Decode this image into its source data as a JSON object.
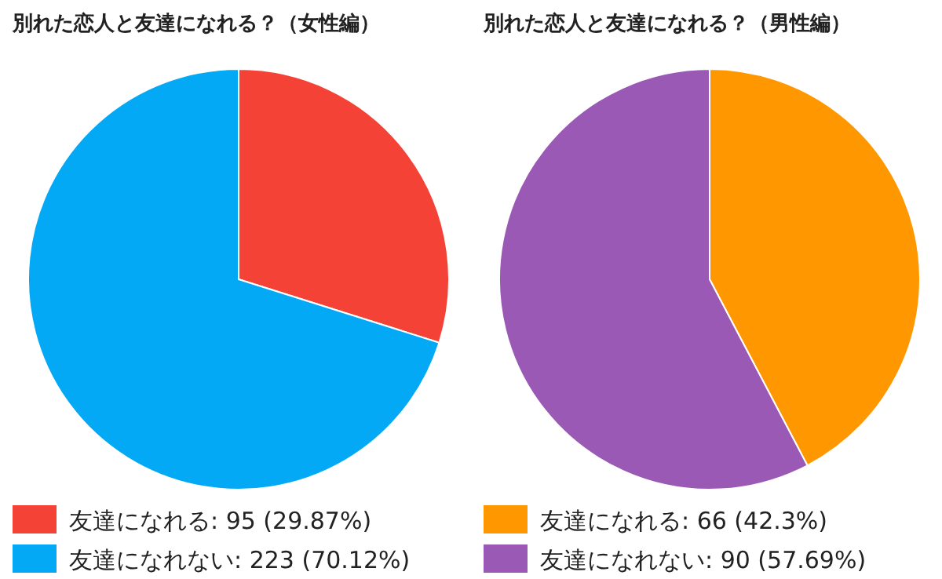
{
  "chart_data": [
    {
      "type": "pie",
      "title": "別れた恋人と友達になれる？（女性編）",
      "categories": [
        "友達になれる",
        "友達になれない"
      ],
      "values": [
        95,
        223
      ],
      "value_labels": [
        "95 (29.87%)",
        "223 (70.12%)"
      ],
      "colors": [
        "#f44336",
        "#03a9f4"
      ],
      "legend": "bottom"
    },
    {
      "type": "pie",
      "title": "別れた恋人と友達になれる？（男性編）",
      "categories": [
        "友達になれる",
        "友達になれない"
      ],
      "values": [
        66,
        90
      ],
      "value_labels": [
        "66 (42.3%)",
        "90 (57.69%)"
      ],
      "colors": [
        "#ff9800",
        "#9b59b6"
      ],
      "legend": "bottom"
    }
  ]
}
